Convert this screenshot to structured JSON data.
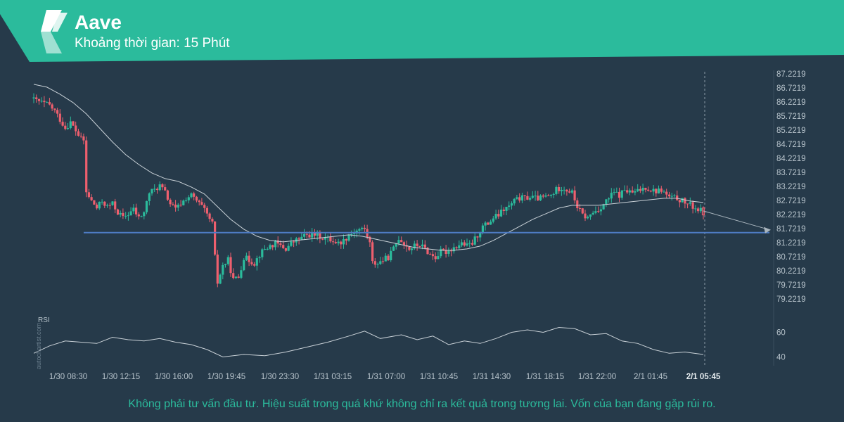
{
  "header": {
    "title": "Aave",
    "subtitle": "Khoảng thời gian: 15 Phút",
    "color": "#2bbb9c"
  },
  "watermark": "autochartist.com",
  "rsi_label": "RSI",
  "disclaimer": "Không phải tư vấn đầu tư. Hiệu suất trong quá khứ không chỉ ra kết quả trong tương lai. Vốn của bạn đang gặp rủi ro.",
  "chart_data": {
    "type": "candlestick",
    "title": "Aave",
    "y_ticks": [
      "87.2219",
      "86.7219",
      "86.2219",
      "85.7219",
      "85.2219",
      "84.7219",
      "84.2219",
      "83.7219",
      "83.2219",
      "82.7219",
      "82.2219",
      "81.7219",
      "81.2219",
      "80.7219",
      "80.2219",
      "79.7219",
      "79.2219"
    ],
    "ylim": [
      79.2219,
      87.2219
    ],
    "x_ticks": [
      "1/30 08:30",
      "1/30 12:15",
      "1/30 16:00",
      "1/30 19:45",
      "1/30 23:30",
      "1/31 03:15",
      "1/31 07:00",
      "1/31 10:45",
      "1/31 14:30",
      "1/31 18:15",
      "1/31 22:00",
      "2/1 01:45",
      "2/1 05:45"
    ],
    "candle_count": 256,
    "close_path": [
      [
        0,
        86.3
      ],
      [
        6,
        86.1
      ],
      [
        8,
        85.9
      ],
      [
        10,
        85.6
      ],
      [
        12,
        85.3
      ],
      [
        14,
        85.5
      ],
      [
        16,
        85.2
      ],
      [
        18,
        84.9
      ],
      [
        19,
        84.85
      ],
      [
        20,
        83.0
      ],
      [
        22,
        82.7
      ],
      [
        24,
        82.45
      ],
      [
        26,
        82.7
      ],
      [
        28,
        82.5
      ],
      [
        30,
        82.6
      ],
      [
        32,
        82.3
      ],
      [
        34,
        82.1
      ],
      [
        36,
        82.25
      ],
      [
        38,
        82.4
      ],
      [
        40,
        82.1
      ],
      [
        42,
        82.3
      ],
      [
        44,
        83.0
      ],
      [
        46,
        83.1
      ],
      [
        48,
        83.25
      ],
      [
        50,
        83.0
      ],
      [
        52,
        82.6
      ],
      [
        54,
        82.4
      ],
      [
        56,
        82.6
      ],
      [
        58,
        82.8
      ],
      [
        60,
        82.9
      ],
      [
        62,
        82.7
      ],
      [
        64,
        82.5
      ],
      [
        66,
        82.2
      ],
      [
        68,
        81.9
      ],
      [
        69,
        80.7
      ],
      [
        70,
        79.8
      ],
      [
        72,
        80.4
      ],
      [
        74,
        80.6
      ],
      [
        76,
        79.9
      ],
      [
        78,
        80.0
      ],
      [
        80,
        80.7
      ],
      [
        82,
        80.6
      ],
      [
        84,
        80.5
      ],
      [
        86,
        80.8
      ],
      [
        88,
        81.0
      ],
      [
        90,
        81.1
      ],
      [
        92,
        81.2
      ],
      [
        94,
        81.1
      ],
      [
        96,
        81.0
      ],
      [
        98,
        81.2
      ],
      [
        100,
        81.3
      ],
      [
        102,
        81.4
      ],
      [
        104,
        81.5
      ],
      [
        106,
        81.5
      ],
      [
        108,
        81.5
      ],
      [
        110,
        81.4
      ],
      [
        112,
        81.35
      ],
      [
        114,
        81.3
      ],
      [
        116,
        81.2
      ],
      [
        118,
        81.3
      ],
      [
        120,
        81.5
      ],
      [
        122,
        81.6
      ],
      [
        124,
        81.7
      ],
      [
        126,
        81.7
      ],
      [
        128,
        81.2
      ],
      [
        129,
        80.5
      ],
      [
        131,
        80.5
      ],
      [
        133,
        80.6
      ],
      [
        135,
        80.7
      ],
      [
        137,
        81.0
      ],
      [
        139,
        81.4
      ],
      [
        141,
        81.2
      ],
      [
        143,
        81.0
      ],
      [
        145,
        81.1
      ],
      [
        147,
        81.15
      ],
      [
        149,
        81.0
      ],
      [
        151,
        80.8
      ],
      [
        153,
        80.7
      ],
      [
        155,
        80.9
      ],
      [
        157,
        80.9
      ],
      [
        159,
        81.0
      ],
      [
        161,
        81.1
      ],
      [
        163,
        81.2
      ],
      [
        165,
        81.1
      ],
      [
        167,
        81.2
      ],
      [
        169,
        81.5
      ],
      [
        171,
        81.8
      ],
      [
        173,
        81.9
      ],
      [
        175,
        82.1
      ],
      [
        177,
        82.2
      ],
      [
        179,
        82.4
      ],
      [
        181,
        82.5
      ],
      [
        183,
        82.7
      ],
      [
        185,
        82.8
      ],
      [
        187,
        82.8
      ],
      [
        189,
        82.85
      ],
      [
        191,
        82.8
      ],
      [
        193,
        82.8
      ],
      [
        195,
        82.85
      ],
      [
        197,
        82.9
      ],
      [
        199,
        83.1
      ],
      [
        201,
        83.2
      ],
      [
        203,
        83.1
      ],
      [
        205,
        83.0
      ],
      [
        207,
        82.5
      ],
      [
        209,
        82.2
      ],
      [
        211,
        82.1
      ],
      [
        213,
        82.3
      ],
      [
        215,
        82.4
      ],
      [
        217,
        82.6
      ],
      [
        219,
        82.8
      ],
      [
        221,
        83.0
      ],
      [
        223,
        82.9
      ],
      [
        225,
        83.1
      ],
      [
        227,
        83.0
      ],
      [
        229,
        83.0
      ],
      [
        231,
        83.1
      ],
      [
        233,
        83.2
      ],
      [
        235,
        83.1
      ],
      [
        237,
        83.05
      ],
      [
        239,
        83.1
      ],
      [
        241,
        82.9
      ],
      [
        243,
        82.8
      ],
      [
        245,
        82.8
      ],
      [
        247,
        82.7
      ],
      [
        249,
        82.6
      ],
      [
        251,
        82.5
      ],
      [
        253,
        82.4
      ],
      [
        255,
        82.3
      ]
    ],
    "moving_average": [
      [
        0,
        86.85
      ],
      [
        5,
        86.75
      ],
      [
        10,
        86.5
      ],
      [
        15,
        86.2
      ],
      [
        20,
        85.8
      ],
      [
        25,
        85.3
      ],
      [
        30,
        84.8
      ],
      [
        35,
        84.35
      ],
      [
        40,
        84.0
      ],
      [
        45,
        83.7
      ],
      [
        50,
        83.5
      ],
      [
        55,
        83.4
      ],
      [
        60,
        83.2
      ],
      [
        65,
        82.95
      ],
      [
        70,
        82.5
      ],
      [
        75,
        82.05
      ],
      [
        80,
        81.7
      ],
      [
        85,
        81.45
      ],
      [
        90,
        81.3
      ],
      [
        95,
        81.25
      ],
      [
        100,
        81.3
      ],
      [
        105,
        81.35
      ],
      [
        110,
        81.4
      ],
      [
        115,
        81.45
      ],
      [
        120,
        81.5
      ],
      [
        125,
        81.45
      ],
      [
        130,
        81.35
      ],
      [
        135,
        81.25
      ],
      [
        140,
        81.15
      ],
      [
        145,
        81.05
      ],
      [
        150,
        81.0
      ],
      [
        155,
        80.95
      ],
      [
        160,
        80.95
      ],
      [
        165,
        81.0
      ],
      [
        170,
        81.1
      ],
      [
        175,
        81.3
      ],
      [
        180,
        81.55
      ],
      [
        185,
        81.8
      ],
      [
        190,
        82.05
      ],
      [
        195,
        82.25
      ],
      [
        200,
        82.45
      ],
      [
        205,
        82.55
      ],
      [
        210,
        82.55
      ],
      [
        215,
        82.55
      ],
      [
        220,
        82.6
      ],
      [
        225,
        82.65
      ],
      [
        230,
        82.7
      ],
      [
        235,
        82.75
      ],
      [
        240,
        82.8
      ],
      [
        245,
        82.8
      ],
      [
        250,
        82.7
      ],
      [
        255,
        82.65
      ]
    ],
    "support_level": 81.58,
    "forecast_target": 81.68,
    "rsi": {
      "ticks": [
        "60",
        "40"
      ],
      "ylim": [
        30,
        70
      ],
      "values": [
        [
          0,
          43
        ],
        [
          6,
          49
        ],
        [
          12,
          53
        ],
        [
          18,
          52
        ],
        [
          24,
          51
        ],
        [
          30,
          56
        ],
        [
          36,
          54
        ],
        [
          42,
          53
        ],
        [
          48,
          55
        ],
        [
          54,
          52
        ],
        [
          60,
          50
        ],
        [
          66,
          46
        ],
        [
          72,
          40
        ],
        [
          80,
          42
        ],
        [
          88,
          41
        ],
        [
          96,
          44
        ],
        [
          104,
          48
        ],
        [
          112,
          52
        ],
        [
          120,
          57
        ],
        [
          126,
          61
        ],
        [
          132,
          55
        ],
        [
          140,
          58
        ],
        [
          146,
          54
        ],
        [
          152,
          57
        ],
        [
          158,
          50
        ],
        [
          164,
          53
        ],
        [
          170,
          51
        ],
        [
          176,
          55
        ],
        [
          182,
          60
        ],
        [
          188,
          62
        ],
        [
          194,
          60
        ],
        [
          200,
          64
        ],
        [
          206,
          63
        ],
        [
          212,
          58
        ],
        [
          218,
          59
        ],
        [
          224,
          53
        ],
        [
          230,
          51
        ],
        [
          236,
          46
        ],
        [
          242,
          43
        ],
        [
          248,
          44
        ],
        [
          255,
          42
        ]
      ]
    }
  }
}
